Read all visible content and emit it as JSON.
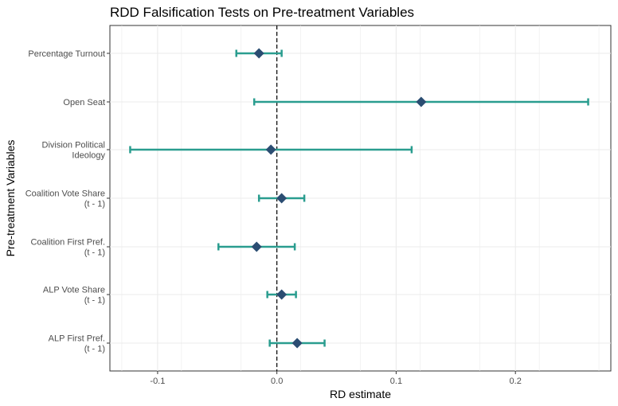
{
  "chart_data": {
    "type": "scatter",
    "title": "RDD Falsification Tests on Pre-treatment Variables",
    "xlabel": "RD estimate",
    "ylabel": "Pre-treatment Variables",
    "xlim": [
      -0.14,
      0.28
    ],
    "x_ticks": [
      -0.1,
      0.0,
      0.1,
      0.2
    ],
    "x_tick_labels": [
      "-0.1",
      "0.0",
      "0.1",
      "0.2"
    ],
    "reference_line_x": 0,
    "grid": true,
    "categories": [
      [
        "Percentage Turnout"
      ],
      [
        "Open Seat"
      ],
      [
        "Division Political",
        "Ideology"
      ],
      [
        "Coalition Vote Share",
        "(t - 1)"
      ],
      [
        "Coalition First Pref.",
        "(t - 1)"
      ],
      [
        "ALP Vote Share",
        "(t - 1)"
      ],
      [
        "ALP First Pref.",
        "(t - 1)"
      ]
    ],
    "estimates": [
      -0.015,
      0.121,
      -0.005,
      0.004,
      -0.017,
      0.004,
      0.017
    ],
    "ci_lower": [
      -0.034,
      -0.019,
      -0.123,
      -0.015,
      -0.049,
      -0.008,
      -0.006
    ],
    "ci_upper": [
      0.004,
      0.261,
      0.113,
      0.023,
      0.015,
      0.016,
      0.04
    ],
    "colors": {
      "point": "#2b4d72",
      "errorbar": "#2a9d8f",
      "grid": "#ebebeb",
      "reference": "#000000"
    }
  }
}
